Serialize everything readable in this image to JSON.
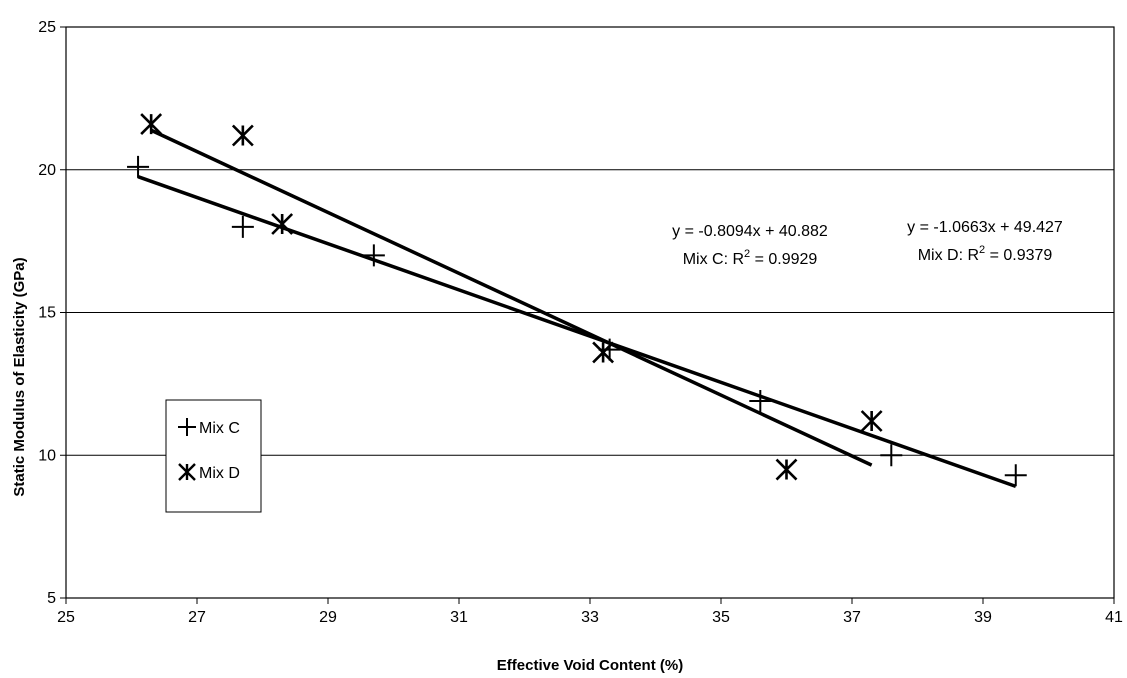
{
  "chart_data": {
    "type": "scatter",
    "xlabel": "Effective Void Content (%)",
    "ylabel": "Static Modulus of Elasticity (GPa)",
    "xlim": [
      25,
      41
    ],
    "ylim": [
      5,
      25
    ],
    "x_ticks": [
      "25",
      "27",
      "29",
      "31",
      "33",
      "35",
      "37",
      "39",
      "41"
    ],
    "y_ticks": [
      "5",
      "10",
      "15",
      "20",
      "25"
    ],
    "grid": "horizontal",
    "legend_position": "left",
    "series": [
      {
        "name": "Mix C",
        "marker": "plus",
        "points": [
          {
            "x": 26.1,
            "y": 20.1
          },
          {
            "x": 27.7,
            "y": 18.0
          },
          {
            "x": 29.7,
            "y": 17.0
          },
          {
            "x": 33.3,
            "y": 13.7
          },
          {
            "x": 35.6,
            "y": 11.9
          },
          {
            "x": 37.6,
            "y": 10.0
          },
          {
            "x": 39.5,
            "y": 9.3
          }
        ],
        "trendline": {
          "slope": -0.8094,
          "intercept": 40.882,
          "x_range": [
            26.1,
            39.5
          ]
        }
      },
      {
        "name": "Mix D",
        "marker": "star",
        "points": [
          {
            "x": 26.3,
            "y": 21.6
          },
          {
            "x": 27.7,
            "y": 21.2
          },
          {
            "x": 28.3,
            "y": 18.1
          },
          {
            "x": 33.2,
            "y": 13.6
          },
          {
            "x": 36.0,
            "y": 9.5
          },
          {
            "x": 37.3,
            "y": 11.2
          }
        ],
        "trendline": {
          "slope": -1.0663,
          "intercept": 49.427,
          "x_range": [
            26.3,
            37.3
          ]
        }
      }
    ],
    "annotations": [
      {
        "id": "mix_c",
        "equation": "y = -0.8094x + 40.882",
        "r2_prefix": "Mix C:  R",
        "r2_sup": "2",
        "r2_value": " = 0.9929"
      },
      {
        "id": "mix_d",
        "equation": "y = -1.0663x + 49.427",
        "r2_prefix": "Mix D:  R",
        "r2_sup": "2",
        "r2_value": " = 0.9379"
      }
    ]
  }
}
